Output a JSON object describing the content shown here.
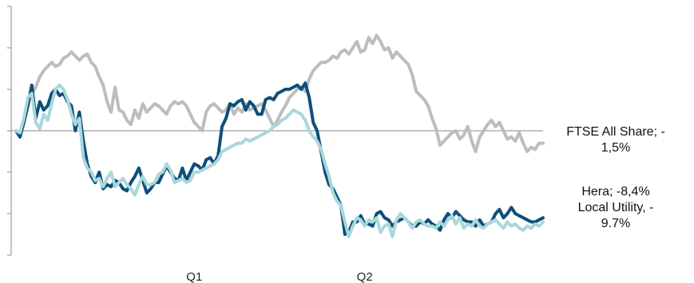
{
  "chart_data": {
    "type": "line",
    "x": [
      0,
      1,
      2,
      3,
      4,
      5,
      6,
      7,
      8,
      9,
      10,
      11,
      12,
      13,
      14,
      15,
      16,
      17,
      18,
      19,
      20,
      21,
      22,
      23,
      24,
      25,
      26,
      27,
      28,
      29,
      30,
      31,
      32,
      33,
      34,
      35,
      36,
      37,
      38,
      39,
      40,
      41,
      42,
      43,
      44,
      45,
      46,
      47,
      48,
      49,
      50,
      51,
      52,
      53,
      54,
      55,
      56,
      57,
      58,
      59,
      60,
      61,
      62,
      63,
      64,
      65,
      66,
      67,
      68,
      69,
      70,
      71,
      72,
      73,
      74,
      75,
      76,
      77,
      78,
      79,
      80,
      81,
      82,
      83,
      84,
      85,
      86,
      87,
      88,
      89,
      90,
      91,
      92,
      93,
      94,
      95,
      96,
      97,
      98,
      99,
      100,
      101,
      102,
      103,
      104,
      105,
      106,
      107,
      108,
      109,
      110,
      111,
      112,
      113,
      114,
      115,
      116,
      117,
      118,
      119,
      120,
      121,
      122,
      123,
      124,
      125,
      126,
      127,
      128,
      129,
      130,
      131,
      132,
      133
    ],
    "categories": [
      "Q1",
      "Q2"
    ],
    "category_positions": [
      45,
      88
    ],
    "ylim": [
      -6.0,
      6.0
    ],
    "baseline": 0,
    "series": [
      {
        "name": "FTSE All Share; -1,5%",
        "color": "#bdbdbd",
        "values": [
          0.0,
          -0.2,
          0.4,
          1.5,
          1.8,
          2.1,
          2.6,
          2.9,
          3.1,
          3.3,
          3.1,
          3.2,
          3.5,
          3.6,
          3.8,
          3.6,
          3.4,
          3.6,
          3.7,
          3.3,
          3.1,
          2.6,
          2.2,
          1.4,
          0.9,
          2.1,
          1.0,
          0.9,
          0.5,
          0.3,
          1.0,
          0.6,
          1.3,
          0.9,
          1.1,
          1.3,
          1.2,
          1.0,
          0.8,
          1.2,
          1.4,
          1.3,
          1.4,
          1.2,
          0.8,
          0.4,
          0.2,
          0.0,
          0.9,
          1.2,
          1.3,
          1.1,
          0.9,
          1.0,
          1.3,
          0.8,
          1.1,
          0.9,
          1.3,
          1.0,
          1.1,
          1.2,
          1.3,
          1.0,
          0.6,
          0.2,
          0.5,
          0.9,
          1.2,
          1.6,
          1.8,
          2.0,
          2.1,
          1.9,
          2.5,
          2.9,
          3.1,
          3.3,
          3.3,
          3.4,
          3.6,
          3.5,
          3.8,
          3.9,
          3.7,
          4.0,
          4.3,
          3.8,
          3.9,
          4.5,
          4.2,
          4.6,
          4.3,
          3.9,
          4.0,
          3.5,
          3.8,
          3.6,
          3.4,
          3.2,
          2.7,
          1.9,
          1.7,
          1.5,
          1.2,
          0.6,
          0.1,
          -0.7,
          -0.5,
          -0.3,
          -0.1,
          0.0,
          -0.4,
          -0.2,
          0.2,
          -0.5,
          -1.0,
          -0.3,
          0.0,
          0.3,
          0.5,
          0.2,
          0.4,
          0.0,
          -0.4,
          -0.3,
          -0.5,
          -0.1,
          -0.6,
          -1.0,
          -0.8,
          -0.9,
          -0.6,
          -0.6
        ]
      },
      {
        "name": "Hera; -8,4%",
        "color": "#0d4f7a",
        "values": [
          0.0,
          -0.3,
          0.4,
          1.2,
          2.2,
          0.6,
          1.4,
          1.0,
          1.2,
          1.8,
          2.0,
          1.7,
          1.8,
          1.4,
          1.2,
          0.0,
          0.9,
          -0.5,
          -1.6,
          -2.2,
          -2.5,
          -2.0,
          -2.8,
          -2.6,
          -2.7,
          -2.4,
          -2.5,
          -2.8,
          -2.9,
          -2.5,
          -2.2,
          -1.8,
          -2.4,
          -3.0,
          -2.8,
          -2.5,
          -2.5,
          -2.1,
          -1.7,
          -2.0,
          -2.3,
          -2.4,
          -1.8,
          -2.4,
          -2.0,
          -1.6,
          -1.7,
          -1.9,
          -1.4,
          -1.3,
          -1.6,
          -1.2,
          0.2,
          0.6,
          1.3,
          1.2,
          1.4,
          1.5,
          1.0,
          1.4,
          1.2,
          0.8,
          0.8,
          1.5,
          1.6,
          1.5,
          1.8,
          1.9,
          2.0,
          2.0,
          2.1,
          2.2,
          2.0,
          2.3,
          1.6,
          0.4,
          0.0,
          -1.0,
          -2.0,
          -2.6,
          -2.8,
          -3.2,
          -3.6,
          -5.0,
          -4.9,
          -4.4,
          -4.4,
          -4.1,
          -4.5,
          -4.5,
          -4.6,
          -4.0,
          -3.9,
          -4.2,
          -4.3,
          -4.6,
          -4.4,
          -4.3,
          -4.2,
          -4.4,
          -4.6,
          -4.6,
          -4.4,
          -4.5,
          -4.3,
          -4.5,
          -4.6,
          -4.8,
          -4.3,
          -4.0,
          -4.2,
          -3.9,
          -4.1,
          -4.3,
          -4.4,
          -4.4,
          -4.6,
          -4.3,
          -4.6,
          -4.5,
          -4.4,
          -4.0,
          -3.8,
          -4.2,
          -4.0,
          -3.7,
          -4.0,
          -4.1,
          -4.2,
          -4.3,
          -4.4,
          -4.4,
          -4.3,
          -4.2
        ]
      },
      {
        "name": "Local Utility, -9.7%",
        "color": "#a9d7dc",
        "values": [
          0.0,
          -0.1,
          0.6,
          1.6,
          1.8,
          0.4,
          0.1,
          0.8,
          0.5,
          1.3,
          2.0,
          2.2,
          2.0,
          1.5,
          0.8,
          0.3,
          0.6,
          -1.3,
          -1.8,
          -2.0,
          -2.4,
          -2.3,
          -2.7,
          -2.3,
          -2.0,
          -2.7,
          -2.5,
          -2.3,
          -2.6,
          -2.8,
          -3.1,
          -2.6,
          -2.2,
          -2.6,
          -2.6,
          -2.5,
          -2.1,
          -2.0,
          -1.6,
          -1.9,
          -2.5,
          -2.4,
          -2.3,
          -2.5,
          -2.4,
          -2.0,
          -2.0,
          -1.9,
          -1.8,
          -1.7,
          -1.6,
          -1.4,
          -1.0,
          -0.9,
          -0.8,
          -0.7,
          -0.6,
          -0.6,
          -0.4,
          -0.5,
          -0.4,
          -0.3,
          -0.2,
          -0.1,
          0.0,
          0.2,
          0.3,
          0.5,
          0.6,
          0.8,
          1.0,
          0.9,
          0.8,
          0.5,
          0.0,
          -0.3,
          -0.5,
          -0.9,
          -1.6,
          -2.2,
          -3.0,
          -3.4,
          -3.6,
          -4.4,
          -5.1,
          -4.6,
          -4.2,
          -4.3,
          -4.6,
          -4.3,
          -4.4,
          -4.2,
          -4.9,
          -4.6,
          -4.5,
          -5.1,
          -4.3,
          -4.0,
          -4.2,
          -4.4,
          -4.7,
          -4.4,
          -4.3,
          -4.5,
          -4.6,
          -4.6,
          -4.7,
          -4.4,
          -4.6,
          -4.3,
          -4.1,
          -4.5,
          -4.2,
          -4.7,
          -4.5,
          -4.6,
          -4.3,
          -4.6,
          -4.7,
          -4.5,
          -4.4,
          -4.3,
          -4.5,
          -4.7,
          -4.4,
          -4.6,
          -4.5,
          -4.7,
          -4.8,
          -4.6,
          -4.7,
          -4.5,
          -4.6,
          -4.4
        ]
      }
    ]
  },
  "legend": {
    "ftse": "FTSE All Share; -\n1,5%",
    "hera": "Hera; -8,4%",
    "local": "Local Utility, -\n9.7%"
  }
}
